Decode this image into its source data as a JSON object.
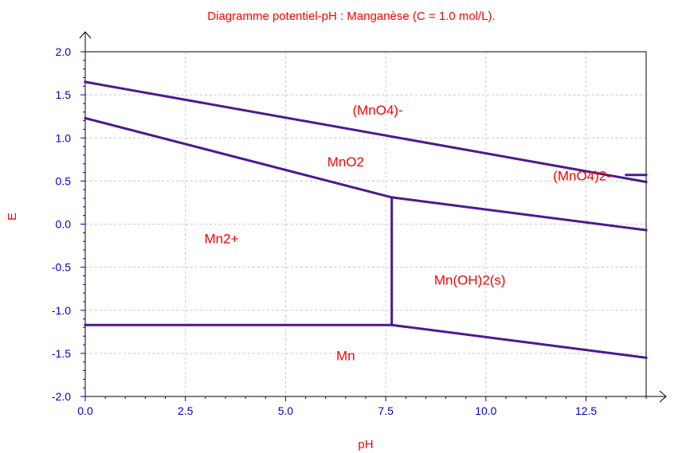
{
  "chart_data": {
    "type": "line",
    "title": "Diagramme potentiel-pH : Manganèse (C = 1.0 mol/L).",
    "xlabel": "pH",
    "ylabel": "E",
    "xlim": [
      0,
      14
    ],
    "ylim": [
      -2.0,
      2.0
    ],
    "x_ticks": [
      "0.0",
      "2.5",
      "5.0",
      "7.5",
      "10.0",
      "12.5"
    ],
    "y_ticks": [
      "-2.0",
      "-1.5",
      "-1.0",
      "-0.5",
      "0.0",
      "0.5",
      "1.0",
      "1.5",
      "2.0"
    ],
    "grid": true,
    "line_color": "#4b1a8f",
    "label_color": "#ff0000",
    "tick_color": "#0000cc",
    "series": [
      {
        "points": [
          [
            0,
            1.65
          ],
          [
            14,
            0.49
          ]
        ]
      },
      {
        "points": [
          [
            0,
            1.23
          ],
          [
            7.65,
            0.31
          ],
          [
            14,
            -0.07
          ]
        ]
      },
      {
        "points": [
          [
            0,
            -1.17
          ],
          [
            7.65,
            -1.17
          ],
          [
            14,
            -1.55
          ]
        ]
      },
      {
        "points": [
          [
            7.65,
            -1.17
          ],
          [
            7.65,
            0.31
          ]
        ]
      },
      {
        "points": [
          [
            13.5,
            0.57
          ],
          [
            14,
            0.57
          ]
        ]
      }
    ],
    "regions": [
      {
        "label": "(MnO4)-",
        "x": 7.3,
        "y": 1.27
      },
      {
        "label": "MnO2",
        "x": 6.5,
        "y": 0.67
      },
      {
        "label": "(MnO4)2-",
        "x": 12.4,
        "y": 0.51
      },
      {
        "label": "Mn2+",
        "x": 3.4,
        "y": -0.22
      },
      {
        "label": "Mn(OH)2(s)",
        "x": 9.6,
        "y": -0.7
      },
      {
        "label": "Mn",
        "x": 6.5,
        "y": -1.58
      }
    ]
  }
}
